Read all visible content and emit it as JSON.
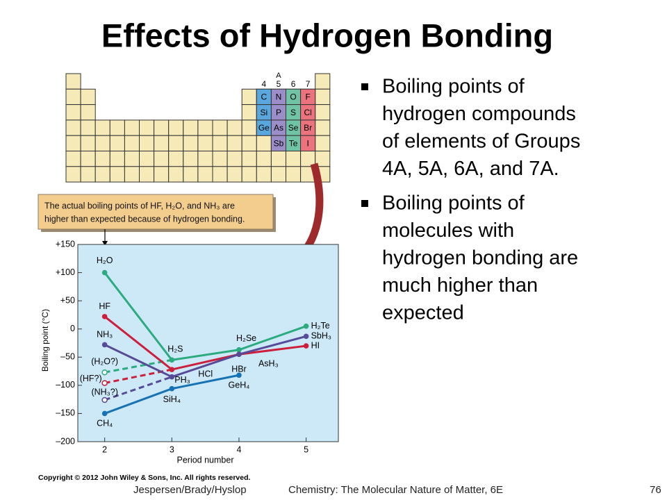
{
  "title": "Effects of Hydrogen Bonding",
  "bullets": [
    [
      "Boiling points of",
      "hydrogen compounds",
      "of elements of Groups",
      "4A, 5A, 6A, and 7A."
    ],
    [
      "Boiling points of",
      "molecules with",
      "hydrogen bonding are",
      "much higher than",
      "expected"
    ]
  ],
  "periodic_table": {
    "header": "A",
    "groups": [
      "4",
      "5",
      "6",
      "7"
    ],
    "elements": [
      [
        "C",
        "N",
        "O",
        "F"
      ],
      [
        "Si",
        "P",
        "S",
        "Cl"
      ],
      [
        "Ge",
        "As",
        "Se",
        "Br"
      ],
      [
        "Sb",
        "Te",
        "I"
      ]
    ],
    "group_colors": [
      "#5aa7dd",
      "#9b8dc8",
      "#70c4a6",
      "#ec737d"
    ]
  },
  "callout": [
    "The actual boiling points of HF, H₂O, and NH₃ are",
    "higher than expected because of hydrogen bonding."
  ],
  "chart_data": {
    "type": "line",
    "ylabel": "Boiling point (°C)",
    "xlabel": "Period number",
    "x": [
      2,
      3,
      4,
      5
    ],
    "xlim": [
      1.6,
      5.48
    ],
    "xticks": [
      2,
      3,
      4,
      5
    ],
    "ylim": [
      -200,
      150
    ],
    "yticks": [
      {
        "value": 150,
        "label": "+150"
      },
      {
        "value": 100,
        "label": "+100"
      },
      {
        "value": 50,
        "label": "+50"
      },
      0,
      {
        "value": -50,
        "label": "–50"
      },
      {
        "value": -100,
        "label": "–100"
      },
      {
        "value": -150,
        "label": "–150"
      },
      {
        "value": -200,
        "label": "–200"
      }
    ],
    "background": "#cde9f7",
    "series": [
      {
        "color": "#2bab7e",
        "values": [
          100,
          -55,
          -37,
          5
        ],
        "labels": [
          "H₂O",
          "H₂S",
          "H₂Se",
          "H₂Te"
        ],
        "expected": -77,
        "expected_label": "(H₂O?)"
      },
      {
        "color": "#cc1f3b",
        "values": [
          22,
          -72,
          -45,
          -30
        ],
        "labels": [
          "HF",
          "HCl",
          "HBr",
          "HI"
        ],
        "expected": -96,
        "expected_label": "(HF?)"
      },
      {
        "color": "#574a98",
        "values": [
          -28,
          -85,
          -45,
          -13
        ],
        "labels": [
          "NH₃",
          "PH₃",
          "AsH₃",
          "SbH₃"
        ],
        "expected": -126,
        "expected_label": "(NH₃?)"
      },
      {
        "color": "#1772b4",
        "values": [
          -150,
          -106,
          -82,
          null
        ],
        "labels": [
          "CH₄",
          "SiH₄",
          "GeH₄",
          null
        ]
      }
    ]
  },
  "footer": {
    "copyright": "Copyright © 2012 John Wiley & Sons, Inc. All rights reserved.",
    "authors": "Jespersen/Brady/Hyslop",
    "book": "Chemistry: The Molecular Nature of Matter, 6E",
    "page": "76"
  }
}
